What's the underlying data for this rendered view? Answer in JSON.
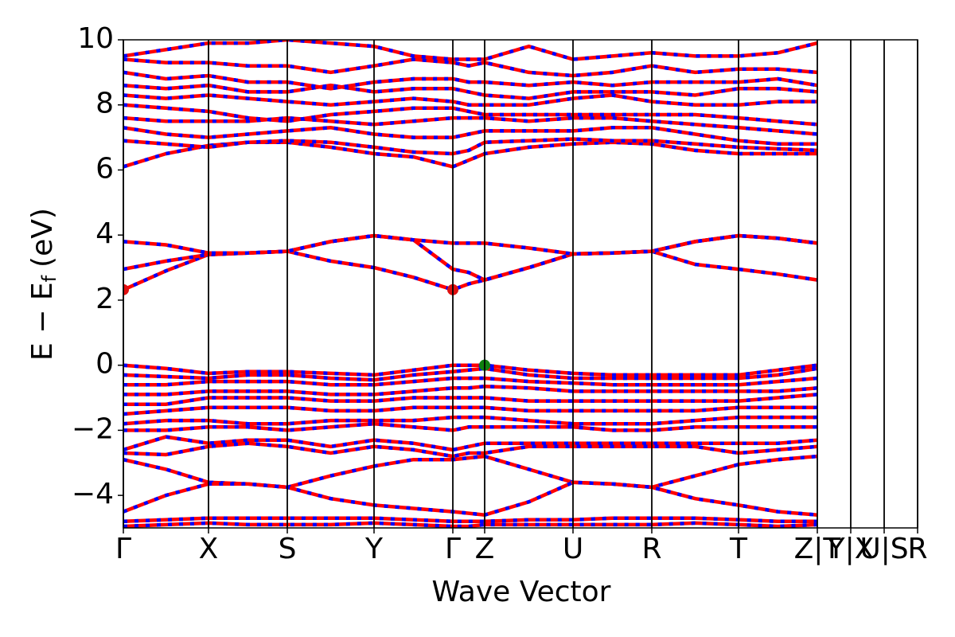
{
  "chart_data": {
    "type": "band",
    "xlabel": "Wave Vector",
    "ylabel": [
      "E − E",
      "f",
      "(eV)"
    ],
    "xlim": [
      0,
      9.98
    ],
    "ylim": [
      -5,
      10
    ],
    "xticks": [
      {
        "value": 0,
        "label": "Γ"
      },
      {
        "value": 1.07,
        "label": "X"
      },
      {
        "value": 2.06,
        "label": "S"
      },
      {
        "value": 3.15,
        "label": "Y"
      },
      {
        "value": 4.14,
        "label": "Γ"
      },
      {
        "value": 4.54,
        "label": "Z"
      },
      {
        "value": 5.65,
        "label": "U"
      },
      {
        "value": 6.64,
        "label": "R"
      },
      {
        "value": 7.73,
        "label": "T"
      },
      {
        "value": 8.72,
        "label": "Z|T"
      },
      {
        "value": 9.14,
        "label": "Y|X"
      },
      {
        "value": 9.56,
        "label": "U|S"
      },
      {
        "value": 9.98,
        "label": "R"
      }
    ],
    "yticks": [
      {
        "value": -4,
        "label": "−4"
      },
      {
        "value": -2,
        "label": "−2"
      },
      0,
      2,
      4,
      6,
      8,
      10
    ],
    "colors": [
      "#ff0000",
      "#0000ff"
    ],
    "x": [
      0,
      0.535,
      1.07,
      1.565,
      2.06,
      2.605,
      3.15,
      3.645,
      4.14,
      4.34,
      4.54,
      5.095,
      5.65,
      6.145,
      6.64,
      7.185,
      7.73,
      8.225,
      8.72
    ],
    "series": [
      {
        "values": [
          2.32,
          2.9,
          3.4,
          3.45,
          3.5,
          3.2,
          3.0,
          2.7,
          2.32,
          2.5,
          2.62,
          3.0,
          3.42,
          3.45,
          3.5,
          3.1,
          2.95,
          2.8,
          2.62
        ]
      },
      {
        "values": [
          2.95,
          3.2,
          3.4,
          3.45,
          3.5,
          3.8,
          3.98,
          3.85,
          2.95,
          2.85,
          2.62,
          3.0,
          3.42,
          3.45,
          3.5,
          3.8,
          3.98,
          3.9,
          3.75
        ]
      },
      {
        "values": [
          3.8,
          3.7,
          3.45,
          3.45,
          3.5,
          3.8,
          3.98,
          3.85,
          3.75,
          3.75,
          3.75,
          3.6,
          3.42,
          3.45,
          3.5,
          3.8,
          3.98,
          3.9,
          3.75
        ]
      },
      {
        "values": [
          6.1,
          6.5,
          6.75,
          6.85,
          6.85,
          6.7,
          6.5,
          6.4,
          6.1,
          6.3,
          6.5,
          6.7,
          6.8,
          6.85,
          6.8,
          6.6,
          6.5,
          6.5,
          6.5
        ]
      },
      {
        "values": [
          6.9,
          6.8,
          6.7,
          6.85,
          6.9,
          6.85,
          6.7,
          6.55,
          6.5,
          6.6,
          6.85,
          6.9,
          6.95,
          6.9,
          6.9,
          6.8,
          6.7,
          6.65,
          6.6
        ]
      },
      {
        "values": [
          7.3,
          7.1,
          7.0,
          7.1,
          7.2,
          7.3,
          7.1,
          7.0,
          7.0,
          7.1,
          7.2,
          7.2,
          7.2,
          7.3,
          7.3,
          7.1,
          6.9,
          6.8,
          6.8
        ]
      },
      {
        "values": [
          7.6,
          7.5,
          7.5,
          7.5,
          7.6,
          7.5,
          7.4,
          7.5,
          7.6,
          7.6,
          7.6,
          7.5,
          7.6,
          7.6,
          7.5,
          7.4,
          7.3,
          7.2,
          7.1
        ]
      },
      {
        "values": [
          8.0,
          7.9,
          7.8,
          7.6,
          7.5,
          7.7,
          7.8,
          7.9,
          7.9,
          7.8,
          7.7,
          7.7,
          7.7,
          7.7,
          7.7,
          7.7,
          7.6,
          7.5,
          7.4
        ]
      },
      {
        "values": [
          8.3,
          8.2,
          8.3,
          8.2,
          8.1,
          8.0,
          8.1,
          8.2,
          8.1,
          8.0,
          8.0,
          8.0,
          8.2,
          8.3,
          8.1,
          8.0,
          8.0,
          8.1,
          8.1
        ]
      },
      {
        "values": [
          8.6,
          8.5,
          8.6,
          8.4,
          8.4,
          8.6,
          8.4,
          8.5,
          8.5,
          8.4,
          8.3,
          8.2,
          8.4,
          8.4,
          8.4,
          8.3,
          8.5,
          8.5,
          8.4
        ]
      },
      {
        "values": [
          9.0,
          8.8,
          8.9,
          8.7,
          8.7,
          8.5,
          8.7,
          8.8,
          8.8,
          8.7,
          8.7,
          8.6,
          8.7,
          8.6,
          8.7,
          8.7,
          8.7,
          8.8,
          8.6
        ]
      },
      {
        "values": [
          9.4,
          9.3,
          9.3,
          9.2,
          9.2,
          9.0,
          9.2,
          9.4,
          9.3,
          9.2,
          9.3,
          9.0,
          8.9,
          9.0,
          9.2,
          9.0,
          9.1,
          9.1,
          9.0
        ]
      },
      {
        "values": [
          9.5,
          9.7,
          9.9,
          9.9,
          10.0,
          9.9,
          9.8,
          9.5,
          9.4,
          9.4,
          9.4,
          9.8,
          9.4,
          9.5,
          9.6,
          9.5,
          9.5,
          9.6,
          9.9
        ]
      },
      {
        "values": [
          0.0,
          -0.1,
          -0.25,
          -0.2,
          -0.2,
          -0.25,
          -0.3,
          -0.15,
          0.0,
          0.0,
          0.0,
          -0.15,
          -0.25,
          -0.3,
          -0.3,
          -0.3,
          -0.3,
          -0.15,
          0.0
        ]
      },
      {
        "values": [
          -0.3,
          -0.35,
          -0.4,
          -0.3,
          -0.3,
          -0.4,
          -0.45,
          -0.3,
          -0.2,
          -0.15,
          -0.1,
          -0.3,
          -0.4,
          -0.4,
          -0.4,
          -0.4,
          -0.4,
          -0.3,
          -0.1
        ]
      },
      {
        "values": [
          -0.6,
          -0.6,
          -0.5,
          -0.5,
          -0.5,
          -0.6,
          -0.6,
          -0.5,
          -0.4,
          -0.4,
          -0.4,
          -0.5,
          -0.55,
          -0.6,
          -0.6,
          -0.6,
          -0.6,
          -0.5,
          -0.4
        ]
      },
      {
        "values": [
          -0.9,
          -0.9,
          -0.8,
          -0.8,
          -0.8,
          -0.9,
          -0.9,
          -0.8,
          -0.7,
          -0.7,
          -0.65,
          -0.7,
          -0.8,
          -0.8,
          -0.8,
          -0.8,
          -0.8,
          -0.8,
          -0.7
        ]
      },
      {
        "values": [
          -1.2,
          -1.2,
          -1.0,
          -1.0,
          -1.0,
          -1.1,
          -1.1,
          -1.0,
          -1.0,
          -1.0,
          -1.0,
          -1.1,
          -1.1,
          -1.1,
          -1.1,
          -1.1,
          -1.1,
          -1.0,
          -0.9
        ]
      },
      {
        "values": [
          -1.5,
          -1.4,
          -1.3,
          -1.3,
          -1.3,
          -1.4,
          -1.4,
          -1.3,
          -1.3,
          -1.3,
          -1.3,
          -1.4,
          -1.4,
          -1.4,
          -1.4,
          -1.4,
          -1.3,
          -1.3,
          -1.3
        ]
      },
      {
        "values": [
          -1.8,
          -1.7,
          -1.7,
          -1.8,
          -1.8,
          -1.7,
          -1.7,
          -1.7,
          -1.6,
          -1.6,
          -1.6,
          -1.7,
          -1.8,
          -1.8,
          -1.8,
          -1.7,
          -1.6,
          -1.6,
          -1.6
        ]
      },
      {
        "values": [
          -2.0,
          -2.0,
          -1.9,
          -1.9,
          -2.0,
          -1.9,
          -1.8,
          -1.9,
          -2.0,
          -1.9,
          -1.9,
          -1.9,
          -1.9,
          -2.0,
          -2.0,
          -1.9,
          -1.9,
          -1.9,
          -1.9
        ]
      },
      {
        "values": [
          -2.6,
          -2.2,
          -2.4,
          -2.3,
          -2.3,
          -2.5,
          -2.3,
          -2.4,
          -2.6,
          -2.5,
          -2.4,
          -2.4,
          -2.4,
          -2.4,
          -2.4,
          -2.4,
          -2.4,
          -2.4,
          -2.3
        ]
      },
      {
        "values": [
          -2.7,
          -2.75,
          -2.5,
          -2.4,
          -2.5,
          -2.7,
          -2.5,
          -2.6,
          -2.8,
          -2.7,
          -2.7,
          -2.5,
          -2.5,
          -2.5,
          -2.5,
          -2.5,
          -2.7,
          -2.6,
          -2.5
        ]
      },
      {
        "values": [
          -2.9,
          -3.2,
          -3.6,
          -3.65,
          -3.75,
          -3.4,
          -3.1,
          -2.9,
          -2.9,
          -2.85,
          -2.8,
          -3.2,
          -3.6,
          -3.65,
          -3.75,
          -3.4,
          -3.05,
          -2.9,
          -2.8
        ]
      },
      {
        "values": [
          -4.5,
          -4.0,
          -3.65,
          -3.65,
          -3.75,
          -4.1,
          -4.3,
          -4.4,
          -4.5,
          -4.55,
          -4.6,
          -4.2,
          -3.6,
          -3.65,
          -3.75,
          -4.1,
          -4.3,
          -4.5,
          -4.6
        ]
      },
      {
        "values": [
          -4.8,
          -4.75,
          -4.7,
          -4.7,
          -4.7,
          -4.7,
          -4.7,
          -4.75,
          -4.8,
          -4.8,
          -4.8,
          -4.75,
          -4.75,
          -4.7,
          -4.7,
          -4.7,
          -4.75,
          -4.8,
          -4.8
        ]
      },
      {
        "values": [
          -4.95,
          -4.9,
          -4.85,
          -4.9,
          -4.9,
          -4.9,
          -4.85,
          -4.9,
          -4.95,
          -4.95,
          -4.9,
          -4.9,
          -4.9,
          -4.9,
          -4.9,
          -4.85,
          -4.9,
          -4.95,
          -4.9
        ]
      }
    ],
    "points": [
      {
        "x": 0,
        "y": 2.32,
        "color": "#e01010"
      },
      {
        "x": 4.14,
        "y": 2.32,
        "color": "#e01010"
      },
      {
        "x": 4.54,
        "y": 0,
        "color": "#108010"
      }
    ]
  }
}
